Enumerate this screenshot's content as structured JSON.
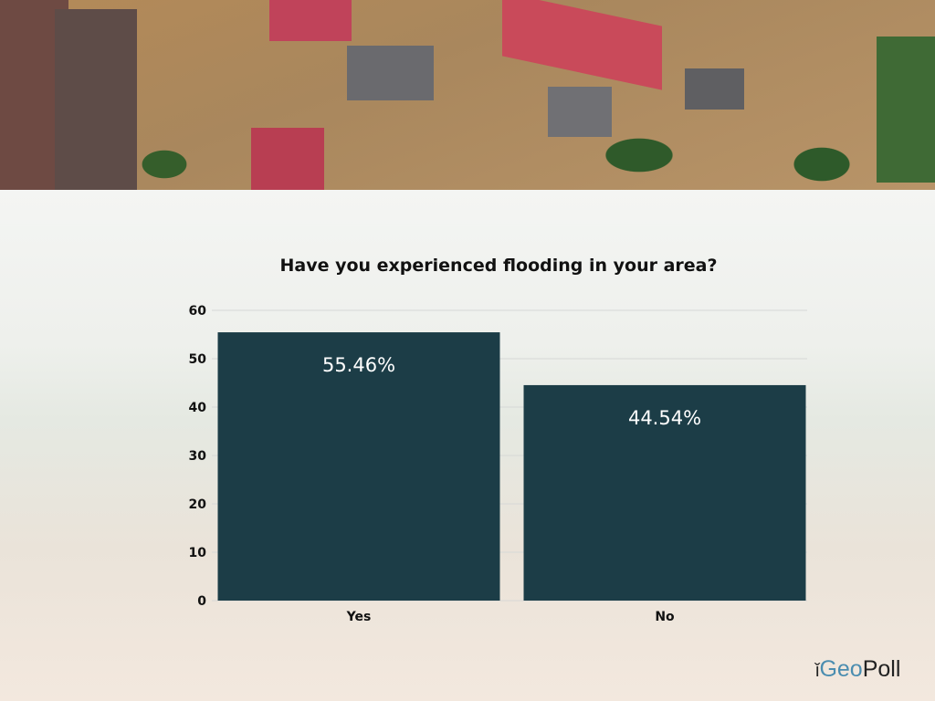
{
  "chart_data": {
    "type": "bar",
    "title": "Have you experienced flooding in your area?",
    "categories": [
      "Yes",
      "No"
    ],
    "values": [
      55.46,
      44.54
    ],
    "data_labels": [
      "55.46%",
      "44.54%"
    ],
    "xlabel": "",
    "ylabel": "",
    "ylim": [
      0,
      60
    ],
    "yticks": [
      0,
      10,
      20,
      30,
      40,
      50,
      60
    ],
    "grid": true,
    "bar_color": "#1c3d47"
  },
  "logo": {
    "text_geo": "Geo",
    "text_poll": "Poll"
  }
}
